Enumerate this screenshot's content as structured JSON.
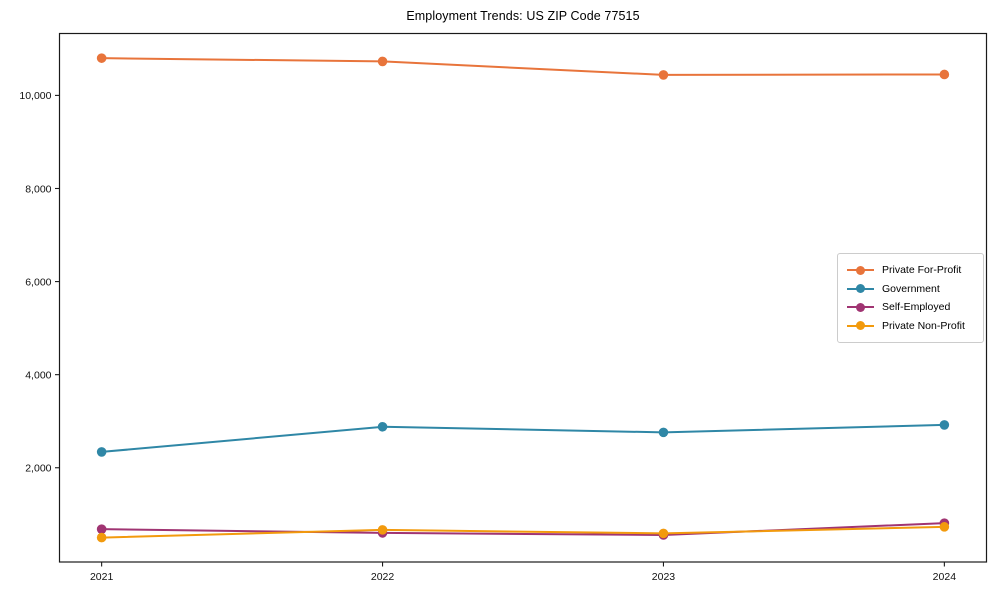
{
  "title": "Employment Trends: US ZIP Code 77515",
  "chart_data": {
    "type": "line",
    "title": "Employment Trends: US ZIP Code 77515",
    "xlabel": "",
    "ylabel": "",
    "x": [
      2021,
      2022,
      2023,
      2024
    ],
    "x_tick_labels": [
      "2021",
      "2022",
      "2023",
      "2024"
    ],
    "y_ticks": [
      2000,
      4000,
      6000,
      8000,
      10000
    ],
    "y_tick_labels": [
      "2,000",
      "4,000",
      "6,000",
      "8,000",
      "10,000"
    ],
    "xlim": [
      2020.85,
      2024.15
    ],
    "ylim": [
      -25,
      11330
    ],
    "grid": false,
    "legend_position": "center-right",
    "axis_color": "#1a1a1a",
    "tick_label_color": "#111111",
    "series": [
      {
        "name": "Private For-Profit",
        "color": "#e8743b",
        "values": [
          10800,
          10730,
          10440,
          10450
        ]
      },
      {
        "name": "Government",
        "color": "#2f87a6",
        "values": [
          2340,
          2880,
          2760,
          2920
        ]
      },
      {
        "name": "Self-Employed",
        "color": "#a03472",
        "values": [
          680,
          600,
          555,
          810
        ]
      },
      {
        "name": "Private Non-Profit",
        "color": "#f29a0d",
        "values": [
          500,
          665,
          590,
          730
        ]
      }
    ]
  }
}
